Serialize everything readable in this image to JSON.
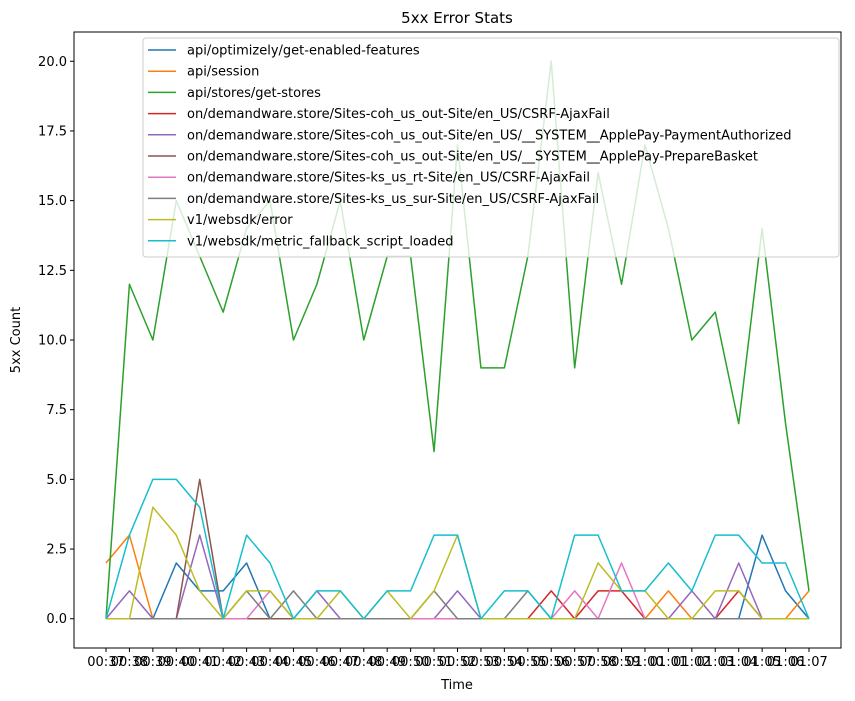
{
  "chart_data": {
    "type": "line",
    "title": "5xx Error Stats",
    "xlabel": "Time",
    "ylabel": "5xx Count",
    "ylim": [
      -1.05,
      21.05
    ],
    "yticks": [
      "0.0",
      "2.5",
      "5.0",
      "7.5",
      "10.0",
      "12.5",
      "15.0",
      "17.5",
      "20.0"
    ],
    "ytick_values": [
      0,
      2.5,
      5,
      7.5,
      10,
      12.5,
      15,
      17.5,
      20
    ],
    "categories": [
      "00:37",
      "00:38",
      "00:39",
      "00:40",
      "00:41",
      "00:42",
      "00:43",
      "00:44",
      "00:45",
      "00:46",
      "00:47",
      "00:48",
      "00:49",
      "00:50",
      "00:51",
      "00:52",
      "00:53",
      "00:54",
      "00:55",
      "00:56",
      "00:57",
      "00:58",
      "00:59",
      "01:00",
      "01:01",
      "01:02",
      "01:03",
      "01:04",
      "01:05",
      "01:06",
      "01:07"
    ],
    "legend_position": "top-right",
    "grid": false,
    "series": [
      {
        "name": "api/optimizely/get-enabled-features",
        "color": "#1f77b4",
        "values": [
          0,
          0,
          0,
          2,
          1,
          1,
          2,
          0,
          0,
          0,
          0,
          0,
          0,
          0,
          0,
          0,
          0,
          0,
          0,
          0,
          0,
          0,
          0,
          0,
          0,
          0,
          0,
          0,
          3,
          1,
          0
        ]
      },
      {
        "name": "api/session",
        "color": "#ff7f0e",
        "values": [
          2,
          3,
          0,
          0,
          0,
          0,
          0,
          0,
          0,
          0,
          0,
          0,
          0,
          0,
          0,
          0,
          0,
          0,
          0,
          0,
          0,
          0,
          0,
          0,
          1,
          0,
          0,
          0,
          0,
          0,
          1
        ]
      },
      {
        "name": "api/stores/get-stores",
        "color": "#2ca02c",
        "values": [
          0,
          12,
          10,
          15,
          13,
          11,
          14,
          15,
          10,
          12,
          15,
          10,
          13,
          13,
          6,
          17,
          9,
          9,
          13,
          20,
          9,
          16,
          12,
          17,
          14,
          10,
          11,
          7,
          14,
          7,
          1
        ]
      },
      {
        "name": "on/demandware.store/Sites-coh_us_out-Site/en_US/CSRF-AjaxFail",
        "color": "#d62728",
        "values": [
          0,
          0,
          0,
          0,
          0,
          0,
          0,
          0,
          0,
          0,
          0,
          0,
          0,
          0,
          0,
          0,
          0,
          0,
          0,
          1,
          0,
          1,
          1,
          0,
          0,
          0,
          0,
          1,
          0,
          0,
          0
        ]
      },
      {
        "name": "on/demandware.store/Sites-coh_us_out-Site/en_US/__SYSTEM__ApplePay-PaymentAuthorized",
        "color": "#9467bd",
        "values": [
          0,
          1,
          0,
          0,
          3,
          0,
          0,
          0,
          0,
          1,
          0,
          0,
          0,
          0,
          0,
          1,
          0,
          0,
          0,
          0,
          0,
          0,
          0,
          0,
          0,
          1,
          0,
          2,
          0,
          0,
          0
        ]
      },
      {
        "name": "on/demandware.store/Sites-coh_us_out-Site/en_US/__SYSTEM__ApplePay-PrepareBasket",
        "color": "#8c564b",
        "values": [
          0,
          0,
          0,
          0,
          5,
          0,
          0,
          0,
          0,
          0,
          0,
          0,
          0,
          0,
          0,
          0,
          0,
          0,
          0,
          0,
          0,
          0,
          0,
          0,
          0,
          0,
          0,
          0,
          0,
          0,
          0
        ]
      },
      {
        "name": "on/demandware.store/Sites-ks_us_rt-Site/en_US/CSRF-AjaxFail",
        "color": "#e377c2",
        "values": [
          0,
          0,
          0,
          0,
          0,
          0,
          0,
          1,
          0,
          0,
          0,
          0,
          0,
          0,
          0,
          0,
          0,
          0,
          0,
          0,
          1,
          0,
          2,
          0,
          0,
          0,
          0,
          0,
          0,
          0,
          0
        ]
      },
      {
        "name": "on/demandware.store/Sites-ks_us_sur-Site/en_US/CSRF-AjaxFail",
        "color": "#7f7f7f",
        "values": [
          0,
          0,
          0,
          0,
          0,
          0,
          1,
          0,
          1,
          0,
          0,
          0,
          0,
          0,
          1,
          0,
          0,
          0,
          1,
          0,
          0,
          0,
          0,
          0,
          0,
          0,
          0,
          0,
          0,
          0,
          0
        ]
      },
      {
        "name": "v1/websdk/error",
        "color": "#bcbd22",
        "values": [
          0,
          0,
          4,
          3,
          1,
          0,
          1,
          1,
          0,
          0,
          1,
          0,
          1,
          0,
          1,
          3,
          0,
          0,
          0,
          0,
          0,
          2,
          1,
          1,
          0,
          0,
          1,
          1,
          0,
          0,
          0
        ]
      },
      {
        "name": "v1/websdk/metric_fallback_script_loaded",
        "color": "#17becf",
        "values": [
          0,
          3,
          5,
          5,
          4,
          0,
          3,
          2,
          0,
          1,
          1,
          0,
          1,
          1,
          3,
          3,
          0,
          1,
          1,
          0,
          3,
          3,
          1,
          1,
          2,
          1,
          3,
          3,
          2,
          2,
          0
        ]
      }
    ]
  }
}
